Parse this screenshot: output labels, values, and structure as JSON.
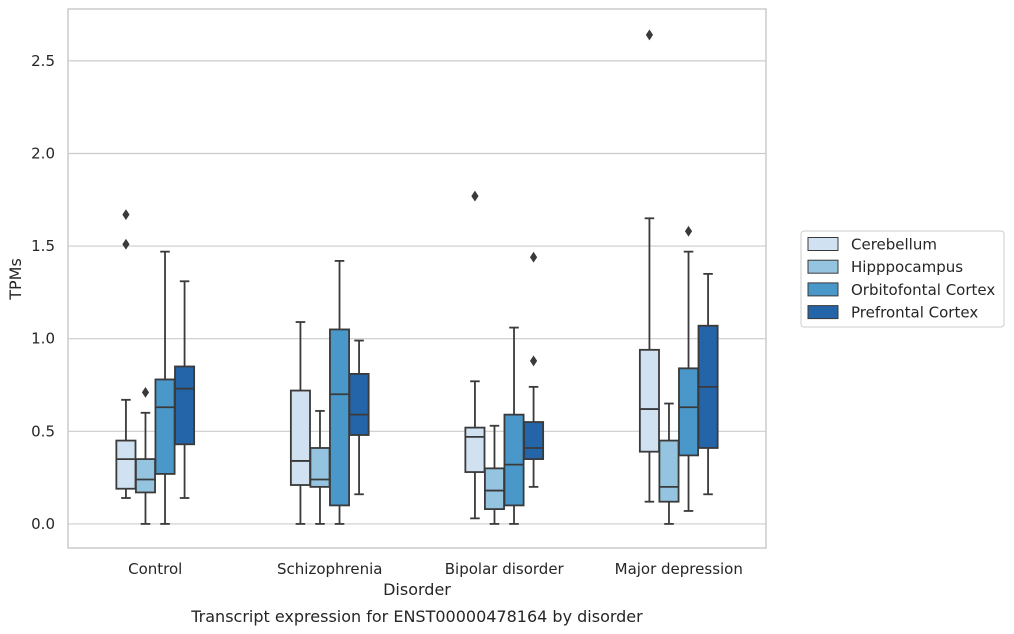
{
  "caption": "Transcript expression for ENST00000478164 by disorder",
  "chart_data": {
    "type": "box",
    "xlabel": "Disorder",
    "ylabel": "TPMs",
    "ylim": [
      -0.13,
      2.78
    ],
    "yticks": [
      0.0,
      0.5,
      1.0,
      1.5,
      2.0,
      2.5
    ],
    "ytick_labels": [
      "0.0",
      "0.5",
      "1.0",
      "1.5",
      "2.0",
      "2.5"
    ],
    "grid": "horizontal",
    "legend_position": "right",
    "categories": [
      "Control",
      "Schizophrenia",
      "Bipolar disorder",
      "Major depression"
    ],
    "series": [
      {
        "name": "Cerebellum",
        "color": "#d0e1f2",
        "boxes": [
          {
            "whisker_low": 0.14,
            "q1": 0.19,
            "median": 0.35,
            "q3": 0.45,
            "whisker_high": 0.67,
            "outliers": [
              1.51,
              1.67
            ]
          },
          {
            "whisker_low": 0.0,
            "q1": 0.21,
            "median": 0.34,
            "q3": 0.72,
            "whisker_high": 1.09,
            "outliers": []
          },
          {
            "whisker_low": 0.03,
            "q1": 0.28,
            "median": 0.47,
            "q3": 0.52,
            "whisker_high": 0.77,
            "outliers": [
              1.77
            ]
          },
          {
            "whisker_low": 0.12,
            "q1": 0.39,
            "median": 0.62,
            "q3": 0.94,
            "whisker_high": 1.65,
            "outliers": [
              2.64
            ]
          }
        ]
      },
      {
        "name": "Hipppocampus",
        "color": "#94c4df",
        "boxes": [
          {
            "whisker_low": 0.0,
            "q1": 0.17,
            "median": 0.24,
            "q3": 0.35,
            "whisker_high": 0.6,
            "outliers": [
              0.71
            ]
          },
          {
            "whisker_low": 0.0,
            "q1": 0.2,
            "median": 0.24,
            "q3": 0.41,
            "whisker_high": 0.61,
            "outliers": []
          },
          {
            "whisker_low": 0.0,
            "q1": 0.08,
            "median": 0.18,
            "q3": 0.3,
            "whisker_high": 0.53,
            "outliers": []
          },
          {
            "whisker_low": 0.0,
            "q1": 0.12,
            "median": 0.2,
            "q3": 0.45,
            "whisker_high": 0.65,
            "outliers": []
          }
        ]
      },
      {
        "name": "Orbitofontal Cortex",
        "color": "#4a98c9",
        "boxes": [
          {
            "whisker_low": 0.0,
            "q1": 0.27,
            "median": 0.63,
            "q3": 0.78,
            "whisker_high": 1.47,
            "outliers": []
          },
          {
            "whisker_low": 0.0,
            "q1": 0.1,
            "median": 0.7,
            "q3": 1.05,
            "whisker_high": 1.42,
            "outliers": []
          },
          {
            "whisker_low": 0.0,
            "q1": 0.1,
            "median": 0.32,
            "q3": 0.59,
            "whisker_high": 1.06,
            "outliers": []
          },
          {
            "whisker_low": 0.07,
            "q1": 0.37,
            "median": 0.63,
            "q3": 0.84,
            "whisker_high": 1.47,
            "outliers": [
              1.58
            ]
          }
        ]
      },
      {
        "name": "Prefrontal Cortex",
        "color": "#2464a8",
        "boxes": [
          {
            "whisker_low": 0.14,
            "q1": 0.43,
            "median": 0.73,
            "q3": 0.85,
            "whisker_high": 1.31,
            "outliers": []
          },
          {
            "whisker_low": 0.16,
            "q1": 0.48,
            "median": 0.59,
            "q3": 0.81,
            "whisker_high": 0.99,
            "outliers": []
          },
          {
            "whisker_low": 0.2,
            "q1": 0.35,
            "median": 0.41,
            "q3": 0.55,
            "whisker_high": 0.74,
            "outliers": [
              0.88,
              1.44
            ]
          },
          {
            "whisker_low": 0.16,
            "q1": 0.41,
            "median": 0.74,
            "q3": 1.07,
            "whisker_high": 1.35,
            "outliers": []
          }
        ]
      }
    ]
  }
}
